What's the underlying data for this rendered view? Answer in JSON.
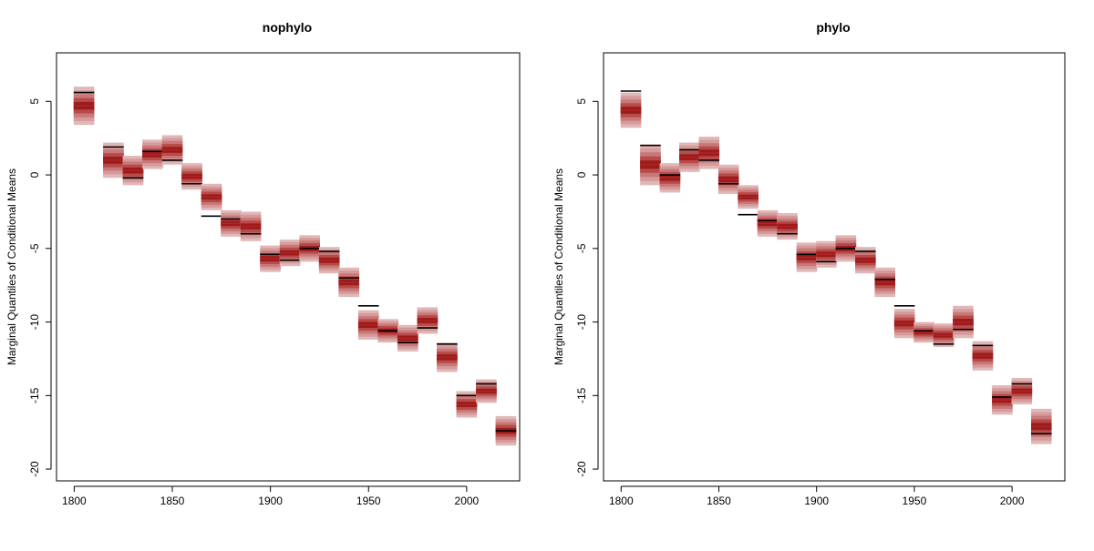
{
  "chart_data": [
    {
      "type": "box-quantile",
      "title": "nophylo",
      "xlabel": "",
      "ylabel": "Marginal Quantiles of Conditional Means",
      "xlim": [
        1791,
        2027
      ],
      "ylim": [
        -20.8,
        8.3
      ],
      "xticks": [
        "1800",
        "1850",
        "1900",
        "1950",
        "2000"
      ],
      "yticks": [
        "5",
        "0",
        "-5",
        "-10",
        "-15",
        "-20"
      ],
      "band_colors": [
        "#e0b8b8",
        "#d69a9a",
        "#c97878",
        "#b84a4a",
        "#9b1c1c"
      ],
      "observed_color": "#000000",
      "x": [
        1805,
        1820,
        1830,
        1840,
        1850,
        1860,
        1870,
        1880,
        1890,
        1900,
        1910,
        1920,
        1930,
        1940,
        1950,
        1960,
        1970,
        1980,
        1990,
        2000,
        2010,
        2020
      ],
      "median": [
        4.7,
        1.0,
        0.3,
        1.4,
        1.7,
        -0.1,
        -1.5,
        -3.3,
        -3.5,
        -5.7,
        -5.3,
        -5.0,
        -5.8,
        -7.3,
        -10.2,
        -10.6,
        -11.1,
        -9.9,
        -12.4,
        -15.6,
        -14.7,
        -17.4
      ],
      "spread": [
        1.3,
        1.2,
        1.0,
        1.0,
        1.0,
        0.9,
        0.9,
        0.9,
        1.0,
        0.9,
        0.9,
        0.9,
        0.9,
        1.0,
        1.0,
        0.8,
        0.9,
        0.9,
        1.0,
        0.9,
        0.8,
        1.0
      ],
      "observed": [
        5.6,
        1.9,
        -0.2,
        1.6,
        1.0,
        -0.6,
        -2.8,
        -3.0,
        -4.0,
        -5.4,
        -5.8,
        -5.0,
        -5.2,
        -7.0,
        -8.9,
        -10.6,
        -11.4,
        -10.4,
        -11.5,
        -15.0,
        -14.2,
        -17.4
      ]
    },
    {
      "type": "box-quantile",
      "title": "phylo",
      "xlabel": "",
      "ylabel": "Marginal Quantiles of Conditional Means",
      "xlim": [
        1791,
        2027
      ],
      "ylim": [
        -20.8,
        8.3
      ],
      "xticks": [
        "1800",
        "1850",
        "1900",
        "1950",
        "2000"
      ],
      "yticks": [
        "5",
        "0",
        "-5",
        "-10",
        "-15",
        "-20"
      ],
      "band_colors": [
        "#e0b8b8",
        "#d69a9a",
        "#c97878",
        "#b84a4a",
        "#9b1c1c"
      ],
      "observed_color": "#000000",
      "x": [
        1805,
        1815,
        1825,
        1835,
        1845,
        1855,
        1865,
        1875,
        1885,
        1895,
        1905,
        1915,
        1925,
        1935,
        1945,
        1955,
        1965,
        1975,
        1985,
        1995,
        2005,
        2015
      ],
      "median": [
        4.4,
        0.7,
        -0.2,
        1.2,
        1.5,
        -0.3,
        -1.5,
        -3.3,
        -3.5,
        -5.6,
        -5.4,
        -5.0,
        -5.8,
        -7.3,
        -10.1,
        -10.7,
        -10.9,
        -10.0,
        -12.3,
        -15.3,
        -14.7,
        -17.1
      ],
      "spread": [
        1.2,
        1.4,
        1.0,
        1.0,
        1.1,
        1.0,
        0.8,
        0.9,
        0.9,
        1.0,
        0.9,
        0.9,
        0.9,
        1.0,
        1.0,
        0.7,
        0.8,
        1.1,
        1.0,
        1.0,
        0.9,
        1.2
      ],
      "observed": [
        5.7,
        2.0,
        0.0,
        1.7,
        1.0,
        -0.6,
        -2.7,
        -3.1,
        -4.0,
        -5.4,
        -5.9,
        -5.0,
        -5.2,
        -7.1,
        -8.9,
        -10.6,
        -11.5,
        -10.5,
        -11.6,
        -15.1,
        -14.2,
        -17.6
      ]
    }
  ]
}
